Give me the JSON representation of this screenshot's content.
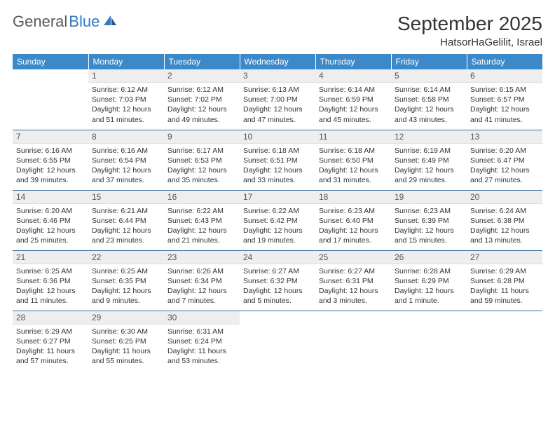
{
  "logo": {
    "text1": "General",
    "text2": "Blue"
  },
  "title": "September 2025",
  "location": "HatsorHaGelilit, Israel",
  "colors": {
    "header_bg": "#3b89c9",
    "header_text": "#ffffff",
    "daynum_bg": "#eeeeee",
    "border": "#3b6fa0",
    "logo_gray": "#5a5a5a",
    "logo_blue": "#2f7bbf"
  },
  "daynames": [
    "Sunday",
    "Monday",
    "Tuesday",
    "Wednesday",
    "Thursday",
    "Friday",
    "Saturday"
  ],
  "weeks": [
    [
      {
        "n": "",
        "sr": "",
        "ss": "",
        "dl": "",
        "empty": true
      },
      {
        "n": "1",
        "sr": "Sunrise: 6:12 AM",
        "ss": "Sunset: 7:03 PM",
        "dl": "Daylight: 12 hours and 51 minutes."
      },
      {
        "n": "2",
        "sr": "Sunrise: 6:12 AM",
        "ss": "Sunset: 7:02 PM",
        "dl": "Daylight: 12 hours and 49 minutes."
      },
      {
        "n": "3",
        "sr": "Sunrise: 6:13 AM",
        "ss": "Sunset: 7:00 PM",
        "dl": "Daylight: 12 hours and 47 minutes."
      },
      {
        "n": "4",
        "sr": "Sunrise: 6:14 AM",
        "ss": "Sunset: 6:59 PM",
        "dl": "Daylight: 12 hours and 45 minutes."
      },
      {
        "n": "5",
        "sr": "Sunrise: 6:14 AM",
        "ss": "Sunset: 6:58 PM",
        "dl": "Daylight: 12 hours and 43 minutes."
      },
      {
        "n": "6",
        "sr": "Sunrise: 6:15 AM",
        "ss": "Sunset: 6:57 PM",
        "dl": "Daylight: 12 hours and 41 minutes."
      }
    ],
    [
      {
        "n": "7",
        "sr": "Sunrise: 6:16 AM",
        "ss": "Sunset: 6:55 PM",
        "dl": "Daylight: 12 hours and 39 minutes."
      },
      {
        "n": "8",
        "sr": "Sunrise: 6:16 AM",
        "ss": "Sunset: 6:54 PM",
        "dl": "Daylight: 12 hours and 37 minutes."
      },
      {
        "n": "9",
        "sr": "Sunrise: 6:17 AM",
        "ss": "Sunset: 6:53 PM",
        "dl": "Daylight: 12 hours and 35 minutes."
      },
      {
        "n": "10",
        "sr": "Sunrise: 6:18 AM",
        "ss": "Sunset: 6:51 PM",
        "dl": "Daylight: 12 hours and 33 minutes."
      },
      {
        "n": "11",
        "sr": "Sunrise: 6:18 AM",
        "ss": "Sunset: 6:50 PM",
        "dl": "Daylight: 12 hours and 31 minutes."
      },
      {
        "n": "12",
        "sr": "Sunrise: 6:19 AM",
        "ss": "Sunset: 6:49 PM",
        "dl": "Daylight: 12 hours and 29 minutes."
      },
      {
        "n": "13",
        "sr": "Sunrise: 6:20 AM",
        "ss": "Sunset: 6:47 PM",
        "dl": "Daylight: 12 hours and 27 minutes."
      }
    ],
    [
      {
        "n": "14",
        "sr": "Sunrise: 6:20 AM",
        "ss": "Sunset: 6:46 PM",
        "dl": "Daylight: 12 hours and 25 minutes."
      },
      {
        "n": "15",
        "sr": "Sunrise: 6:21 AM",
        "ss": "Sunset: 6:44 PM",
        "dl": "Daylight: 12 hours and 23 minutes."
      },
      {
        "n": "16",
        "sr": "Sunrise: 6:22 AM",
        "ss": "Sunset: 6:43 PM",
        "dl": "Daylight: 12 hours and 21 minutes."
      },
      {
        "n": "17",
        "sr": "Sunrise: 6:22 AM",
        "ss": "Sunset: 6:42 PM",
        "dl": "Daylight: 12 hours and 19 minutes."
      },
      {
        "n": "18",
        "sr": "Sunrise: 6:23 AM",
        "ss": "Sunset: 6:40 PM",
        "dl": "Daylight: 12 hours and 17 minutes."
      },
      {
        "n": "19",
        "sr": "Sunrise: 6:23 AM",
        "ss": "Sunset: 6:39 PM",
        "dl": "Daylight: 12 hours and 15 minutes."
      },
      {
        "n": "20",
        "sr": "Sunrise: 6:24 AM",
        "ss": "Sunset: 6:38 PM",
        "dl": "Daylight: 12 hours and 13 minutes."
      }
    ],
    [
      {
        "n": "21",
        "sr": "Sunrise: 6:25 AM",
        "ss": "Sunset: 6:36 PM",
        "dl": "Daylight: 12 hours and 11 minutes."
      },
      {
        "n": "22",
        "sr": "Sunrise: 6:25 AM",
        "ss": "Sunset: 6:35 PM",
        "dl": "Daylight: 12 hours and 9 minutes."
      },
      {
        "n": "23",
        "sr": "Sunrise: 6:26 AM",
        "ss": "Sunset: 6:34 PM",
        "dl": "Daylight: 12 hours and 7 minutes."
      },
      {
        "n": "24",
        "sr": "Sunrise: 6:27 AM",
        "ss": "Sunset: 6:32 PM",
        "dl": "Daylight: 12 hours and 5 minutes."
      },
      {
        "n": "25",
        "sr": "Sunrise: 6:27 AM",
        "ss": "Sunset: 6:31 PM",
        "dl": "Daylight: 12 hours and 3 minutes."
      },
      {
        "n": "26",
        "sr": "Sunrise: 6:28 AM",
        "ss": "Sunset: 6:29 PM",
        "dl": "Daylight: 12 hours and 1 minute."
      },
      {
        "n": "27",
        "sr": "Sunrise: 6:29 AM",
        "ss": "Sunset: 6:28 PM",
        "dl": "Daylight: 11 hours and 59 minutes."
      }
    ],
    [
      {
        "n": "28",
        "sr": "Sunrise: 6:29 AM",
        "ss": "Sunset: 6:27 PM",
        "dl": "Daylight: 11 hours and 57 minutes."
      },
      {
        "n": "29",
        "sr": "Sunrise: 6:30 AM",
        "ss": "Sunset: 6:25 PM",
        "dl": "Daylight: 11 hours and 55 minutes."
      },
      {
        "n": "30",
        "sr": "Sunrise: 6:31 AM",
        "ss": "Sunset: 6:24 PM",
        "dl": "Daylight: 11 hours and 53 minutes."
      },
      {
        "n": "",
        "sr": "",
        "ss": "",
        "dl": "",
        "empty": true
      },
      {
        "n": "",
        "sr": "",
        "ss": "",
        "dl": "",
        "empty": true
      },
      {
        "n": "",
        "sr": "",
        "ss": "",
        "dl": "",
        "empty": true
      },
      {
        "n": "",
        "sr": "",
        "ss": "",
        "dl": "",
        "empty": true
      }
    ]
  ]
}
